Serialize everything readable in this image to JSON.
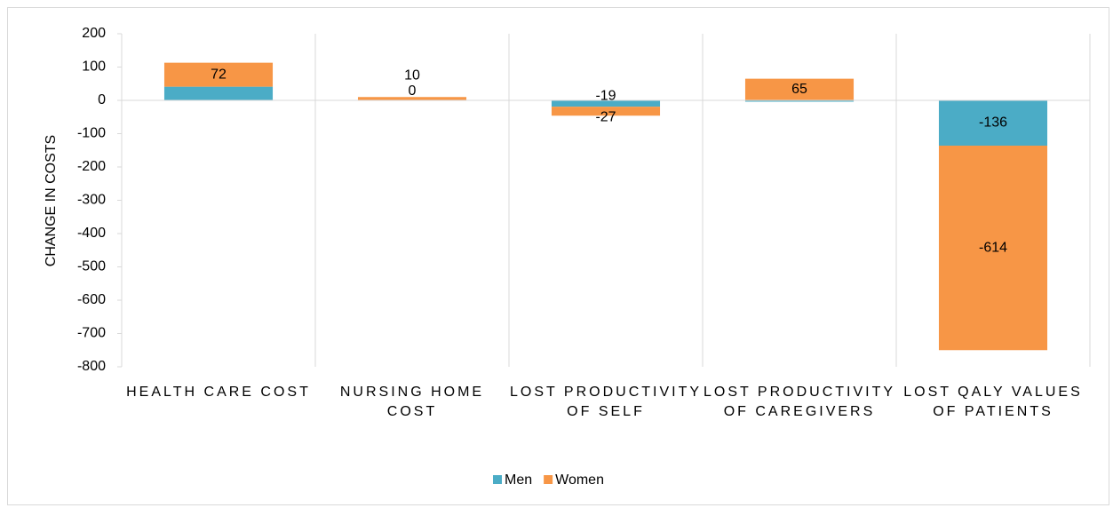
{
  "chart_data": {
    "type": "stacked_bar",
    "categories": [
      "HEALTH CARE COST",
      "NURSING HOME COST",
      "LOST PRODUCTIVITY OF SELF",
      "LOST PRODUCTIVITY OF CAREGIVERS",
      "LOST QALY VALUES OF PATIENTS"
    ],
    "series": [
      {
        "name": "Men",
        "color": "#4bacc6",
        "values": [
          41,
          0,
          -19,
          -4,
          -136
        ]
      },
      {
        "name": "Women",
        "color": "#f79646",
        "values": [
          72,
          10,
          -27,
          65,
          -614
        ]
      }
    ],
    "y_label": "CHANGE IN COSTS",
    "ylim": [
      -800,
      200
    ],
    "yticks": [
      -800,
      -700,
      -600,
      -500,
      -400,
      -300,
      -200,
      -100,
      0,
      100,
      200
    ],
    "legend": "bottom"
  }
}
